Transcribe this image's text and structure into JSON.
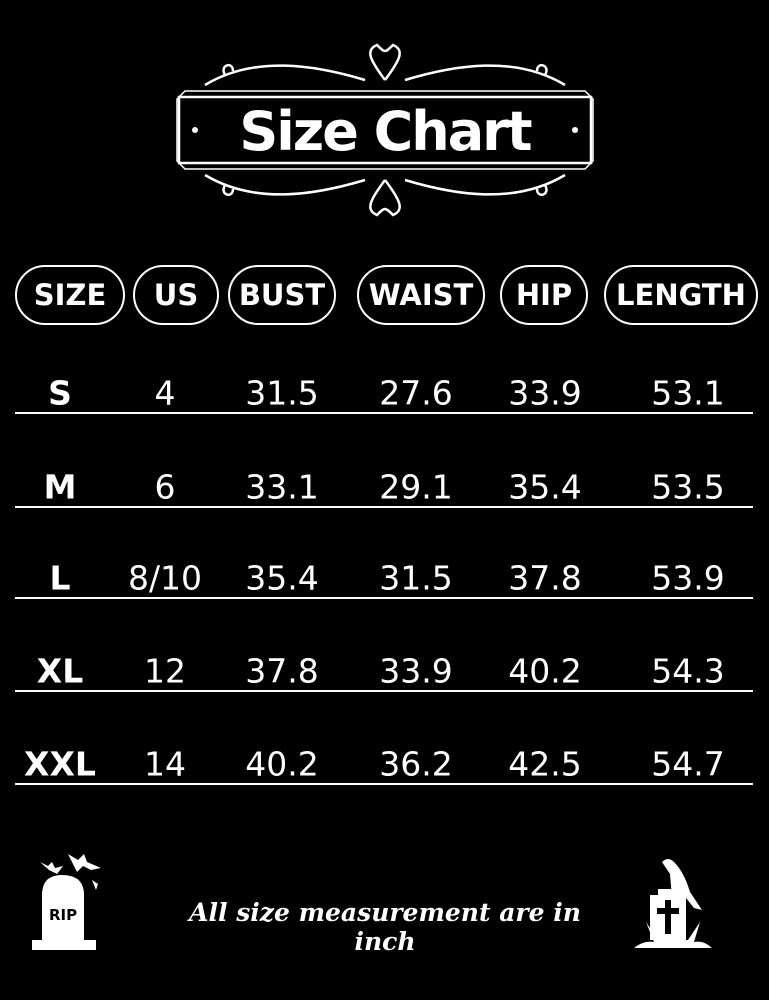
{
  "title": "Size Chart",
  "chart_data": {
    "type": "table",
    "title": "Size Chart",
    "columns": [
      "SIZE",
      "US",
      "BUST",
      "WAIST",
      "HIP",
      "LENGTH"
    ],
    "rows": [
      [
        "S",
        "4",
        "31.5",
        "27.6",
        "33.9",
        "53.1"
      ],
      [
        "M",
        "6",
        "33.1",
        "29.1",
        "35.4",
        "53.5"
      ],
      [
        "L",
        "8/10",
        "35.4",
        "31.5",
        "37.8",
        "53.9"
      ],
      [
        "XL",
        "12",
        "37.8",
        "33.9",
        "40.2",
        "54.3"
      ],
      [
        "XXL",
        "14",
        "40.2",
        "36.2",
        "42.5",
        "54.7"
      ]
    ]
  },
  "footer": {
    "note": "All size measurement are in inch",
    "rip_icon_text": "RIP",
    "left_icon": "tombstone-bats-icon",
    "right_icon": "crow-grave-cross-icon"
  },
  "colors": {
    "background": "#000000",
    "foreground": "#ffffff"
  }
}
